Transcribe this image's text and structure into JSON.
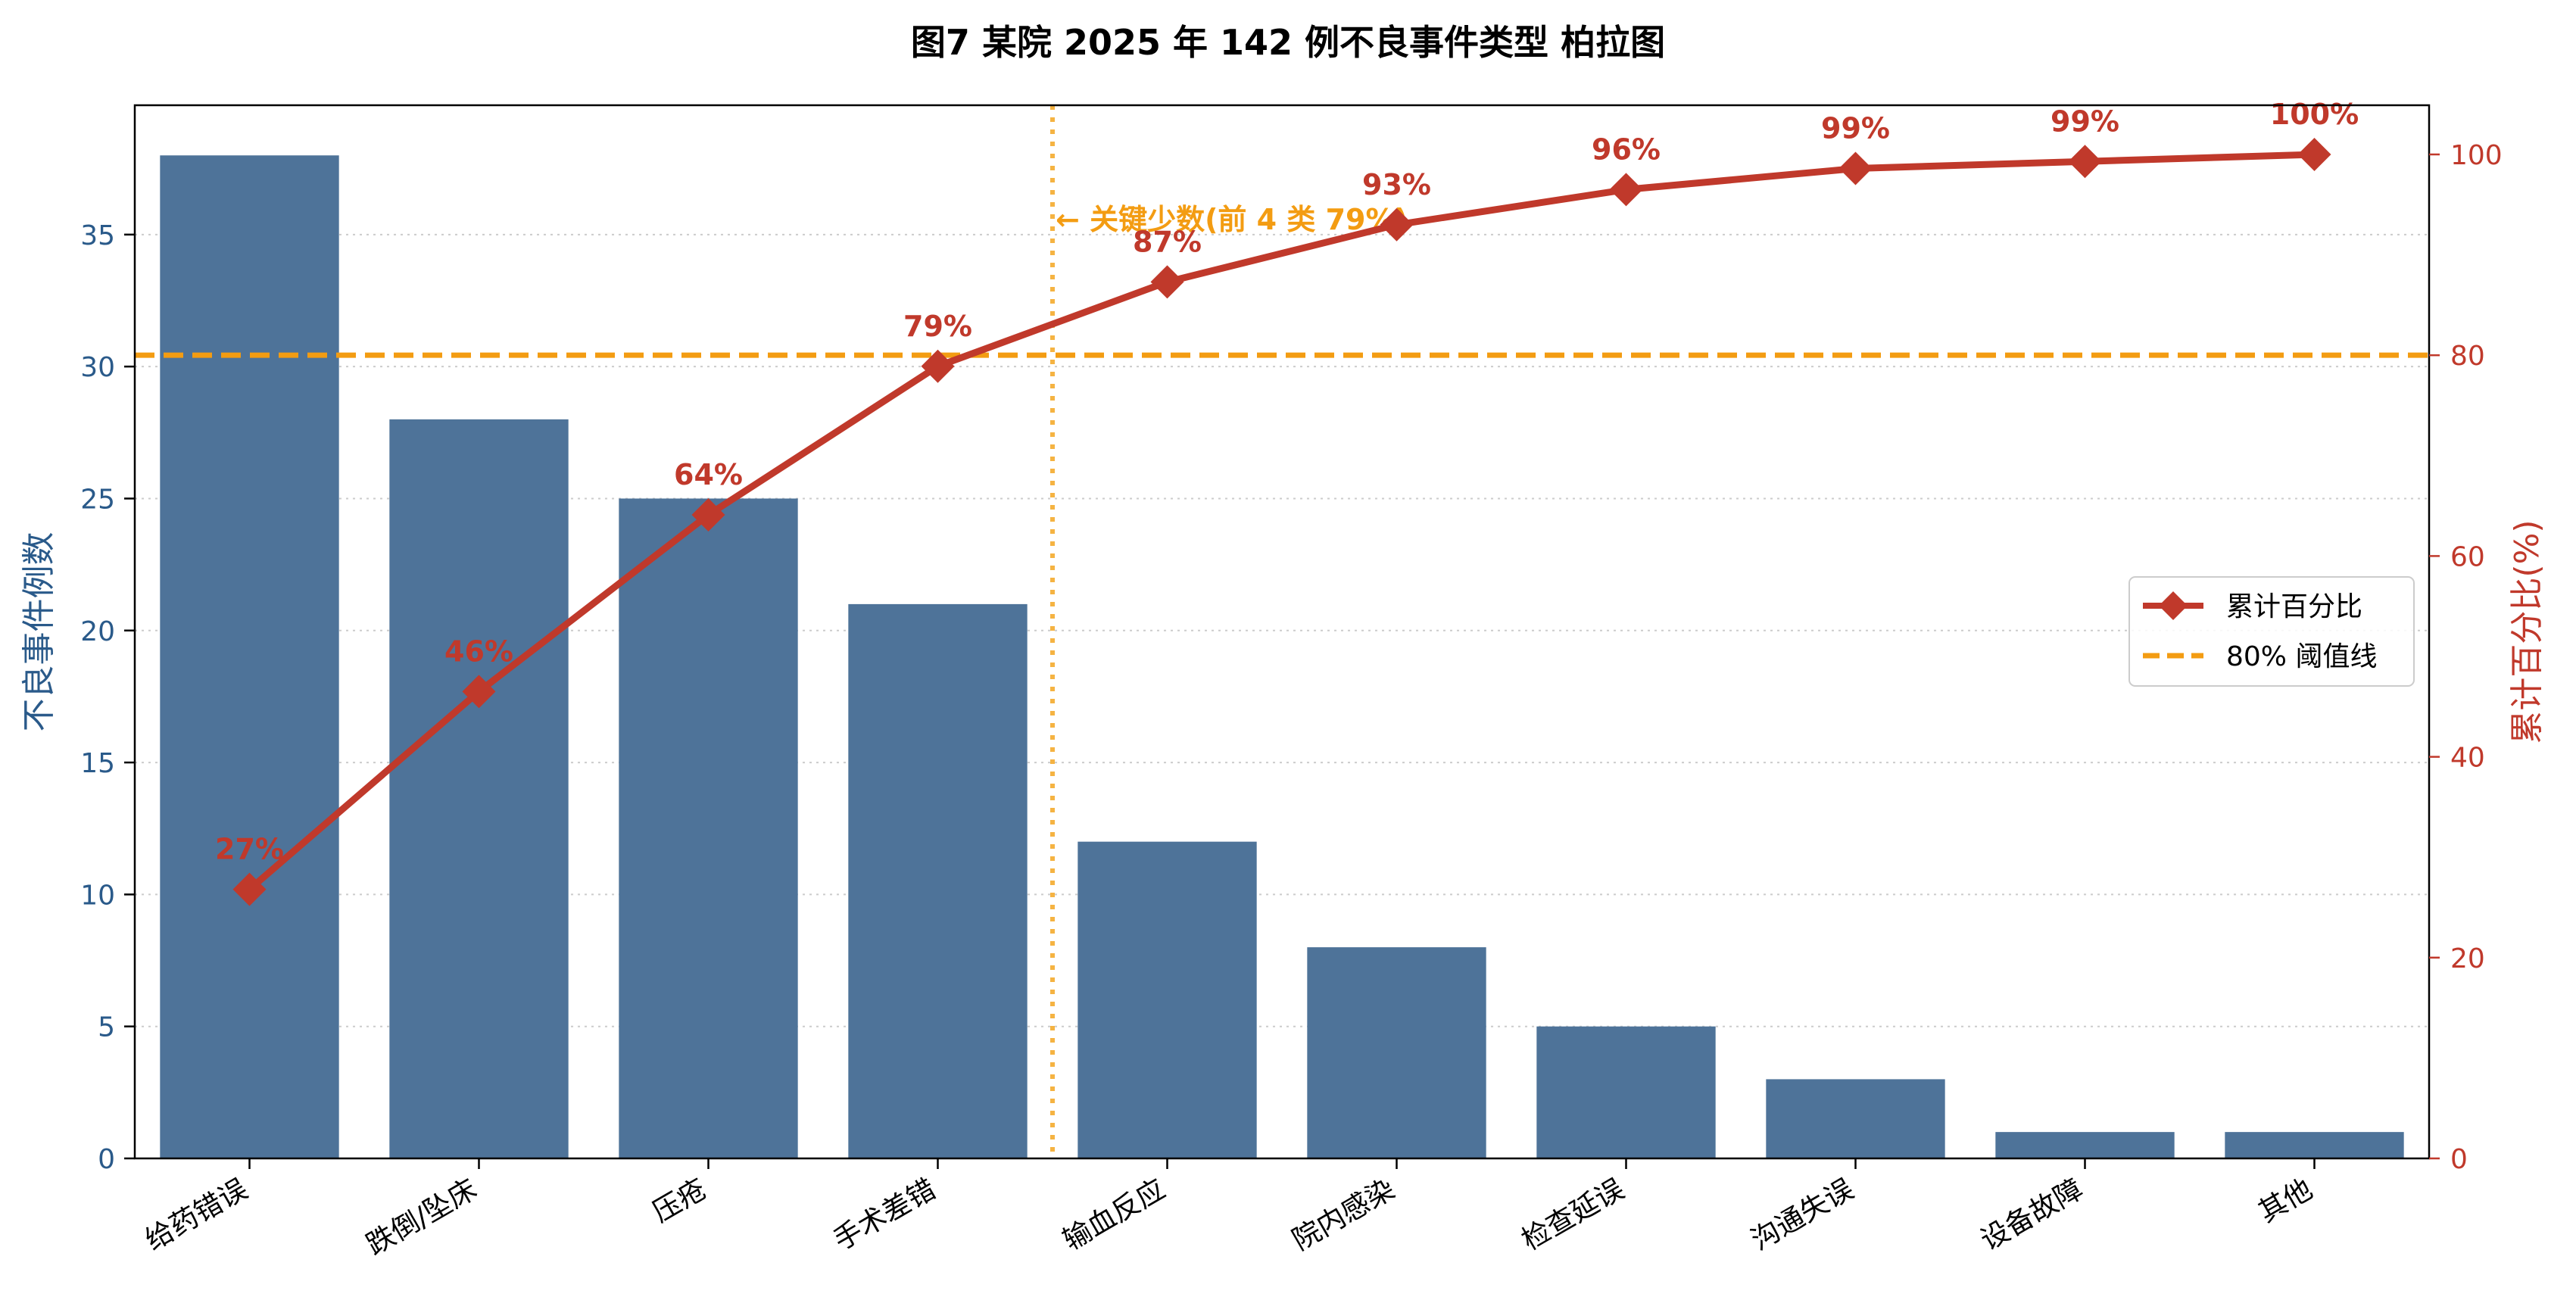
{
  "chart_data": {
    "type": "bar",
    "title": "图7 某院 2025 年 142 例不良事件类型 柏拉图",
    "categories": [
      "给药错误",
      "跌倒/坠床",
      "压疮",
      "手术差错",
      "输血反应",
      "院内感染",
      "检查延误",
      "沟通失误",
      "设备故障",
      "其他"
    ],
    "series": [
      {
        "name": "不良事件例数",
        "type": "bar",
        "axis": "left",
        "values": [
          38,
          28,
          25,
          21,
          12,
          8,
          5,
          3,
          1,
          1
        ]
      },
      {
        "name": "累计百分比",
        "type": "line",
        "axis": "right",
        "values": [
          26.8,
          46.5,
          64.1,
          78.9,
          87.3,
          93.0,
          96.5,
          98.6,
          99.3,
          100.0
        ]
      }
    ],
    "data_labels": [
      "27%",
      "46%",
      "64%",
      "79%",
      "87%",
      "93%",
      "96%",
      "99%",
      "99%",
      "100%"
    ],
    "ylabel": "不良事件例数",
    "y2label": "累计百分比(%)",
    "ylim": [
      0,
      39.9
    ],
    "y2lim": [
      0,
      104.9
    ],
    "yticks": [
      0,
      5,
      10,
      15,
      20,
      25,
      30,
      35
    ],
    "y2ticks": [
      0,
      20,
      40,
      60,
      80,
      100
    ],
    "threshold": {
      "value": 80,
      "label": "80% 阈值线"
    },
    "vital_few_divider_after_index": 3,
    "annotation": "← 关键少数(前 4 类 79%)",
    "legend": [
      {
        "label": "累计百分比",
        "kind": "line-marker"
      },
      {
        "label": "80% 阈值线",
        "kind": "dashed"
      }
    ],
    "legend_position": "center-right",
    "grid": "horizontal-dotted",
    "colors": {
      "bar": "#4e7399",
      "line": "#c0392b",
      "threshold": "#f39c12",
      "divider": "#f5b342",
      "left_axis": "#2a5a8a",
      "right_axis": "#c0392b"
    }
  }
}
